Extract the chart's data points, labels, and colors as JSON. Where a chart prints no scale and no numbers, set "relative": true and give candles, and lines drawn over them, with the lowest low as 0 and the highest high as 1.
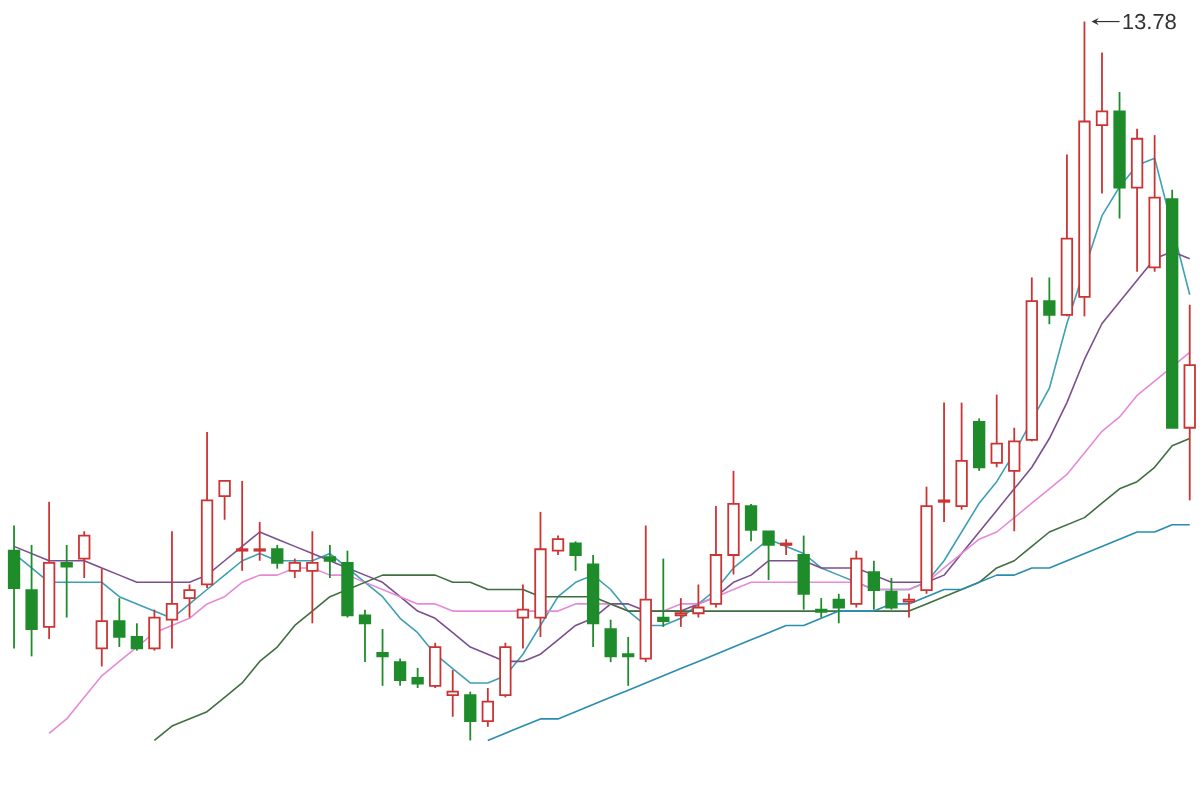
{
  "chart_data": {
    "type": "candlestick",
    "relative": true,
    "categories": [
      null,
      null,
      null,
      null,
      null,
      null,
      null,
      null,
      null,
      null,
      null,
      null,
      null,
      null,
      null,
      null,
      null,
      null,
      null,
      null,
      null,
      null,
      null,
      null,
      null,
      null,
      null,
      null,
      null,
      null,
      null,
      null,
      null,
      null,
      null,
      null,
      null,
      null,
      null,
      null,
      null,
      null,
      null,
      null,
      null,
      null,
      null,
      null,
      null,
      null,
      null,
      null,
      null,
      null,
      null,
      null,
      null,
      null,
      null,
      null,
      null,
      null,
      null,
      null,
      null,
      null,
      null,
      null
    ],
    "ohlc": [
      [
        0.264,
        0.299,
        0.128,
        0.212
      ],
      [
        0.209,
        0.272,
        0.117,
        0.155
      ],
      [
        0.158,
        0.332,
        0.141,
        0.247
      ],
      [
        0.247,
        0.272,
        0.171,
        0.242
      ],
      [
        0.253,
        0.291,
        0.226,
        0.285
      ],
      [
        0.128,
        0.239,
        0.103,
        0.166
      ],
      [
        0.166,
        0.198,
        0.13,
        0.144
      ],
      [
        0.144,
        0.163,
        0.125,
        0.128
      ],
      [
        0.128,
        0.182,
        0.125,
        0.171
      ],
      [
        0.168,
        0.291,
        0.128,
        0.19
      ],
      [
        0.198,
        0.217,
        0.171,
        0.209
      ],
      [
        0.217,
        0.429,
        0.212,
        0.334
      ],
      [
        0.34,
        0.361,
        0.307,
        0.361
      ],
      [
        0.264,
        0.361,
        0.236,
        0.266
      ],
      [
        0.264,
        0.304,
        0.25,
        0.266
      ],
      [
        0.266,
        0.272,
        0.239,
        0.247
      ],
      [
        0.236,
        0.253,
        0.226,
        0.247
      ],
      [
        0.236,
        0.291,
        0.163,
        0.247
      ],
      [
        0.255,
        0.272,
        0.226,
        0.25
      ],
      [
        0.247,
        0.264,
        0.171,
        0.174
      ],
      [
        0.174,
        0.182,
        0.109,
        0.163
      ],
      [
        0.122,
        0.155,
        0.076,
        0.117
      ],
      [
        0.109,
        0.114,
        0.076,
        0.084
      ],
      [
        0.087,
        0.101,
        0.073,
        0.079
      ],
      [
        0.076,
        0.136,
        0.073,
        0.13
      ],
      [
        0.063,
        0.098,
        0.033,
        0.068
      ],
      [
        0.063,
        0.068,
        0,
        0.027
      ],
      [
        0.027,
        0.073,
        0.019,
        0.054
      ],
      [
        0.063,
        0.136,
        0.06,
        0.13
      ],
      [
        0.171,
        0.217,
        0.128,
        0.182
      ],
      [
        0.171,
        0.318,
        0.144,
        0.266
      ],
      [
        0.264,
        0.285,
        0.258,
        0.28
      ],
      [
        0.274,
        0.277,
        0.236,
        0.258
      ],
      [
        0.245,
        0.258,
        0.13,
        0.163
      ],
      [
        0.155,
        0.168,
        0.109,
        0.117
      ],
      [
        0.12,
        0.144,
        0.076,
        0.117
      ],
      [
        0.114,
        0.299,
        0.109,
        0.196
      ],
      [
        0.171,
        0.253,
        0.158,
        0.166
      ],
      [
        0.174,
        0.198,
        0.158,
        0.177
      ],
      [
        0.177,
        0.217,
        0.171,
        0.185
      ],
      [
        0.19,
        0.326,
        0.185,
        0.258
      ],
      [
        0.258,
        0.375,
        0.231,
        0.329
      ],
      [
        0.326,
        0.329,
        0.277,
        0.293
      ],
      [
        0.291,
        0.291,
        0.223,
        0.272
      ],
      [
        0.272,
        0.28,
        0.258,
        0.274
      ],
      [
        0.258,
        0.285,
        0.182,
        0.204
      ],
      [
        0.182,
        0.198,
        0.171,
        0.179
      ],
      [
        0.196,
        0.204,
        0.163,
        0.185
      ],
      [
        0.19,
        0.264,
        0.185,
        0.253
      ],
      [
        0.234,
        0.25,
        0.182,
        0.209
      ],
      [
        0.207,
        0.226,
        0.182,
        0.185
      ],
      [
        0.193,
        0.204,
        0.171,
        0.196
      ],
      [
        0.209,
        0.353,
        0.204,
        0.326
      ],
      [
        0.332,
        0.47,
        0.304,
        0.334
      ],
      [
        0.326,
        0.47,
        0.321,
        0.389
      ],
      [
        0.443,
        0.448,
        0.375,
        0.38
      ],
      [
        0.386,
        0.481,
        0.38,
        0.413
      ],
      [
        0.375,
        0.435,
        0.291,
        0.416
      ],
      [
        0.418,
        0.644,
        0.416,
        0.611
      ],
      [
        0.611,
        0.644,
        0.579,
        0.592
      ],
      [
        0.592,
        0.815,
        0.59,
        0.698
      ],
      [
        0.617,
        1,
        0.59,
        0.861
      ],
      [
        0.856,
        0.957,
        0.761,
        0.875
      ],
      [
        0.875,
        0.902,
        0.726,
        0.769
      ],
      [
        0.769,
        0.851,
        0.652,
        0.837
      ],
      [
        0.658,
        0.842,
        0.652,
        0.755
      ],
      [
        0.753,
        0.766,
        0.435,
        0.435
      ],
      [
        0.435,
        0.606,
        0.334,
        0.522
      ]
    ],
    "colors": [
      "#1e8c2a",
      "#1e8c2a",
      "#cc3333",
      "#1e8c2a",
      "#cc3333",
      "#cc3333",
      "#1e8c2a",
      "#1e8c2a",
      "#cc3333",
      "#cc3333",
      "#cc3333",
      "#cc3333",
      "#cc3333",
      "#cc3333",
      "#cc3333",
      "#1e8c2a",
      "#cc3333",
      "#cc3333",
      "#1e8c2a",
      "#1e8c2a",
      "#1e8c2a",
      "#1e8c2a",
      "#1e8c2a",
      "#1e8c2a",
      "#cc3333",
      "#cc3333",
      "#1e8c2a",
      "#cc3333",
      "#cc3333",
      "#cc3333",
      "#cc3333",
      "#cc3333",
      "#1e8c2a",
      "#1e8c2a",
      "#1e8c2a",
      "#1e8c2a",
      "#cc3333",
      "#1e8c2a",
      "#cc3333",
      "#cc3333",
      "#cc3333",
      "#cc3333",
      "#1e8c2a",
      "#1e8c2a",
      "#cc3333",
      "#1e8c2a",
      "#1e8c2a",
      "#1e8c2a",
      "#cc3333",
      "#1e8c2a",
      "#1e8c2a",
      "#cc3333",
      "#cc3333",
      "#cc3333",
      "#cc3333",
      "#1e8c2a",
      "#cc3333",
      "#cc3333",
      "#cc3333",
      "#1e8c2a",
      "#cc3333",
      "#cc3333",
      "#cc3333",
      "#1e8c2a",
      "#cc3333",
      "#cc3333",
      "#1e8c2a",
      "#cc3333"
    ],
    "series": [
      {
        "type": "line",
        "color": "#3d9fb5",
        "values": [
          0.26,
          0.24,
          0.22,
          0.22,
          0.22,
          0.22,
          0.2,
          0.19,
          0.18,
          0.17,
          0.19,
          0.21,
          0.23,
          0.25,
          0.26,
          0.25,
          0.25,
          0.25,
          0.26,
          0.24,
          0.22,
          0.2,
          0.17,
          0.15,
          0.12,
          0.1,
          0.08,
          0.08,
          0.09,
          0.12,
          0.16,
          0.2,
          0.22,
          0.23,
          0.21,
          0.18,
          0.16,
          0.16,
          0.17,
          0.19,
          0.21,
          0.24,
          0.26,
          0.28,
          0.27,
          0.26,
          0.24,
          0.23,
          0.22,
          0.21,
          0.21,
          0.21,
          0.22,
          0.25,
          0.29,
          0.33,
          0.36,
          0.4,
          null,
          0.49,
          0.58,
          null,
          0.73,
          0.77,
          0.8,
          0.81,
          null,
          0.62
        ]
      },
      {
        "type": "line",
        "color": "#7b4f8f",
        "values": [
          0.27,
          0.26,
          0.25,
          0.25,
          0.25,
          0.24,
          0.23,
          0.22,
          0.22,
          0.22,
          0.22,
          0.23,
          0.25,
          0.27,
          0.29,
          0.28,
          0.27,
          0.26,
          0.25,
          0.24,
          0.23,
          0.22,
          0.2,
          0.18,
          0.17,
          0.15,
          0.13,
          0.12,
          0.11,
          0.11,
          0.12,
          0.14,
          0.16,
          0.17,
          0.19,
          0.19,
          0.18,
          0.18,
          0.18,
          0.19,
          0.2,
          0.22,
          0.23,
          0.25,
          0.25,
          0.25,
          0.24,
          0.24,
          0.24,
          0.23,
          0.22,
          0.22,
          0.22,
          0.23,
          0.26,
          0.29,
          0.32,
          0.35,
          0.38,
          0.42,
          0.47,
          0.53,
          0.58,
          0.61,
          0.64,
          0.67,
          0.68,
          0.67
        ]
      },
      {
        "type": "line",
        "color": "#e58ad8",
        "values": [
          null,
          null,
          0.01,
          0.03,
          0.06,
          0.09,
          0.11,
          0.13,
          0.15,
          0.16,
          0.17,
          0.19,
          0.2,
          0.22,
          0.23,
          0.23,
          0.24,
          0.24,
          0.23,
          0.23,
          0.22,
          0.21,
          0.2,
          0.19,
          0.19,
          0.18,
          0.18,
          0.18,
          0.18,
          0.18,
          0.18,
          0.18,
          0.19,
          0.19,
          0.19,
          0.18,
          null,
          0.18,
          0.19,
          0.19,
          0.2,
          0.21,
          0.22,
          0.22,
          0.22,
          0.22,
          0.22,
          0.22,
          0.22,
          0.21,
          0.21,
          0.21,
          0.22,
          0.24,
          0.26,
          0.28,
          0.29,
          0.31,
          0.33,
          0.35,
          0.37,
          0.4,
          0.43,
          0.45,
          0.48,
          0.5,
          0.52,
          0.54
        ]
      },
      {
        "type": "line",
        "color": "#3f6e3f",
        "values": [
          null,
          null,
          null,
          null,
          null,
          null,
          null,
          null,
          0.0,
          0.02,
          0.03,
          0.04,
          0.06,
          0.08,
          0.11,
          0.13,
          0.16,
          0.18,
          0.2,
          0.21,
          0.22,
          0.23,
          0.23,
          0.23,
          0.23,
          0.22,
          0.22,
          0.21,
          0.21,
          0.21,
          0.2,
          0.2,
          0.2,
          0.2,
          0.19,
          0.18,
          0.18,
          0.18,
          0.18,
          0.18,
          0.18,
          0.18,
          0.18,
          0.18,
          0.18,
          0.18,
          0.18,
          0.18,
          0.18,
          0.18,
          0.18,
          0.18,
          0.19,
          0.2,
          0.21,
          0.22,
          0.24,
          0.25,
          0.27,
          0.29,
          0.3,
          0.31,
          0.33,
          0.35,
          0.36,
          0.38,
          0.41,
          0.42
        ]
      },
      {
        "type": "line",
        "color": "#2a8cb0",
        "values": [
          null,
          null,
          null,
          null,
          null,
          null,
          null,
          null,
          null,
          null,
          null,
          null,
          null,
          null,
          null,
          null,
          null,
          null,
          null,
          null,
          null,
          null,
          null,
          null,
          null,
          null,
          null,
          0.0,
          0.01,
          0.02,
          0.03,
          0.03,
          0.04,
          0.05,
          0.06,
          0.07,
          0.08,
          0.09,
          0.1,
          0.11,
          0.12,
          0.13,
          0.14,
          0.15,
          0.16,
          0.16,
          0.17,
          0.18,
          0.18,
          0.18,
          0.19,
          0.19,
          0.2,
          0.21,
          0.21,
          0.22,
          0.23,
          0.23,
          0.24,
          0.24,
          0.25,
          0.26,
          0.27,
          0.28,
          0.29,
          0.29,
          0.3,
          0.3
        ]
      }
    ],
    "annotations": [
      "13.78"
    ]
  }
}
